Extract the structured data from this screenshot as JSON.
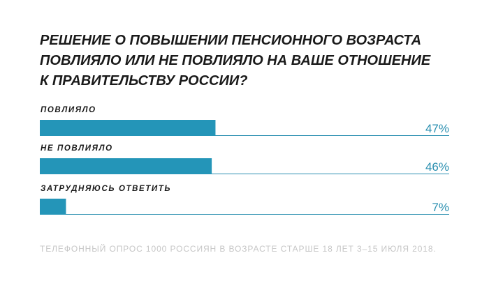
{
  "colors": {
    "bar": "#2495b8",
    "axis": "#2a8fb0",
    "title": "#1a1a1a",
    "footnote": "#c6c6c6"
  },
  "chart_data": {
    "type": "bar",
    "orientation": "horizontal",
    "title_lines": [
      "РЕШЕНИЕ О ПОВЫШЕНИИ ПЕНСИОННОГО ВОЗРАСТА",
      "ПОВЛИЯЛО ИЛИ НЕ ПОВЛИЯЛО НА ВАШЕ ОТНОШЕНИЕ",
      "К ПРАВИТЕЛЬСТВУ РОССИИ?"
    ],
    "categories": [
      "ПОВЛИЯЛО",
      "НЕ ПОВЛИЯЛО",
      "ЗАТРУДНЯЮСЬ ОТВЕТИТЬ"
    ],
    "values": [
      47,
      46,
      7
    ],
    "value_labels": [
      "47%",
      "46%",
      "7%"
    ],
    "unit": "%",
    "xlim": [
      0,
      100
    ],
    "grid": false,
    "legend": "none",
    "footnote": "ТЕЛЕФОННЫЙ ОПРОС 1000 РОССИЯН В ВОЗРАСТЕ СТАРШЕ 18 ЛЕТ 3–15 ИЮЛЯ 2018."
  }
}
